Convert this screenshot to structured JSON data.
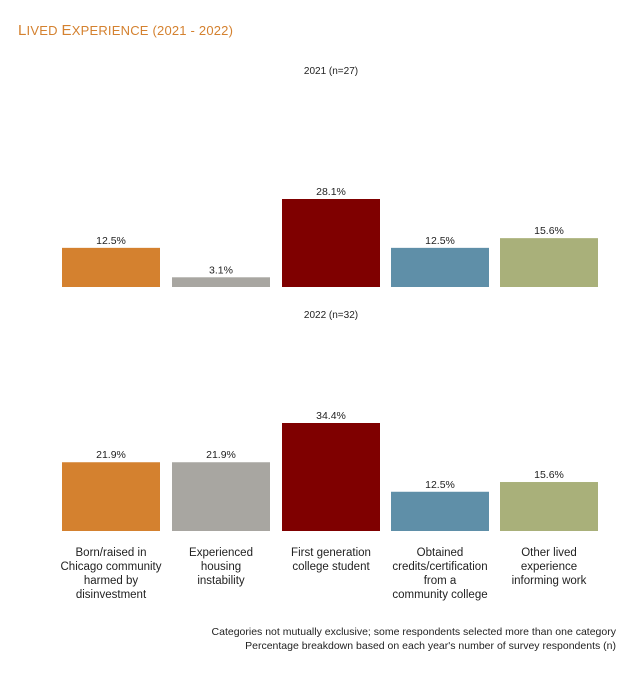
{
  "title": "Lived Experience (2021 - 2022)",
  "footnotes": [
    "Categories not mutually exclusive; some respondents selected more than one category",
    "Percentage breakdown based on each year's number of survey respondents (n)"
  ],
  "chart_data": [
    {
      "type": "bar",
      "title": "2021 (n=27)",
      "categories": [
        "Born/raised in Chicago community harmed by disinvestment",
        "Experienced housing instability",
        "First generation college student",
        "Obtained credits/certification from a community college",
        "Other lived experience informing work"
      ],
      "values": [
        12.5,
        3.1,
        28.1,
        12.5,
        15.6
      ],
      "value_labels": [
        "12.5%",
        "3.1%",
        "28.1%",
        "12.5%",
        "15.6%"
      ],
      "colors": [
        "#d4812f",
        "#a8a6a1",
        "#7f0000",
        "#5f8fa8",
        "#a9b07a"
      ],
      "ylim": [
        0,
        35
      ],
      "grid": false,
      "legend": "none"
    },
    {
      "type": "bar",
      "title": "2022 (n=32)",
      "categories": [
        "Born/raised in Chicago community harmed by disinvestment",
        "Experienced housing instability",
        "First generation college student",
        "Obtained credits/certification from a community college",
        "Other lived experience informing work"
      ],
      "category_label_lines": [
        [
          "Born/raised in",
          "Chicago community",
          "harmed by",
          "disinvestment"
        ],
        [
          "Experienced",
          "housing",
          "instability"
        ],
        [
          "First generation",
          "college student"
        ],
        [
          "Obtained",
          "credits/certification",
          "from a",
          "community college"
        ],
        [
          "Other lived",
          "experience",
          "informing work"
        ]
      ],
      "values": [
        21.9,
        21.9,
        34.4,
        12.5,
        15.6
      ],
      "value_labels": [
        "21.9%",
        "21.9%",
        "34.4%",
        "12.5%",
        "15.6%"
      ],
      "colors": [
        "#d4812f",
        "#a8a6a1",
        "#7f0000",
        "#5f8fa8",
        "#a9b07a"
      ],
      "ylim": [
        0,
        35
      ],
      "grid": false,
      "legend": "none"
    }
  ]
}
